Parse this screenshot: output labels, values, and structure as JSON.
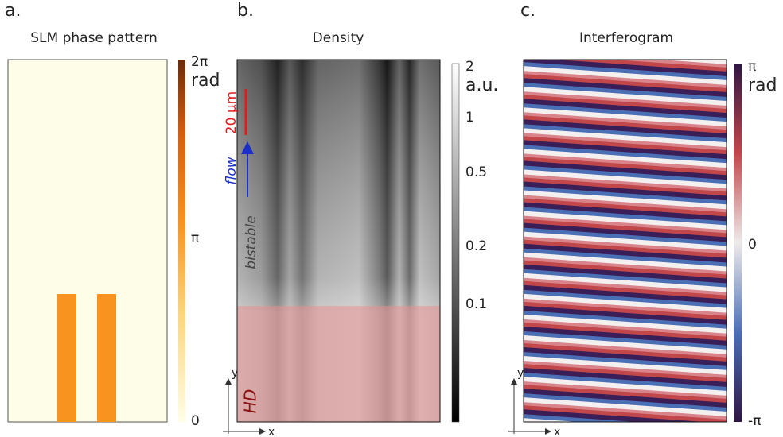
{
  "panels": [
    {
      "label": "a.",
      "title": "SLM phase pattern",
      "colorbar": {
        "ticks": [
          "2π",
          "π",
          "0"
        ],
        "unit": "rad"
      }
    },
    {
      "label": "b.",
      "title": "Density",
      "colorbar": {
        "ticks": [
          "2",
          "1",
          "0.5",
          "0.2",
          "0.1"
        ],
        "unit": "a.u."
      },
      "annotations": {
        "scale_bar": "20 μm",
        "flow": "flow",
        "region_top": "bistable",
        "region_bottom": "HD"
      },
      "axes": {
        "y": "y",
        "x": "x"
      }
    },
    {
      "label": "c.",
      "title": "Interferogram",
      "colorbar": {
        "ticks": [
          "π",
          "0",
          "-π"
        ],
        "unit": "rad"
      },
      "axes": {
        "y": "y",
        "x": "x"
      }
    }
  ]
}
